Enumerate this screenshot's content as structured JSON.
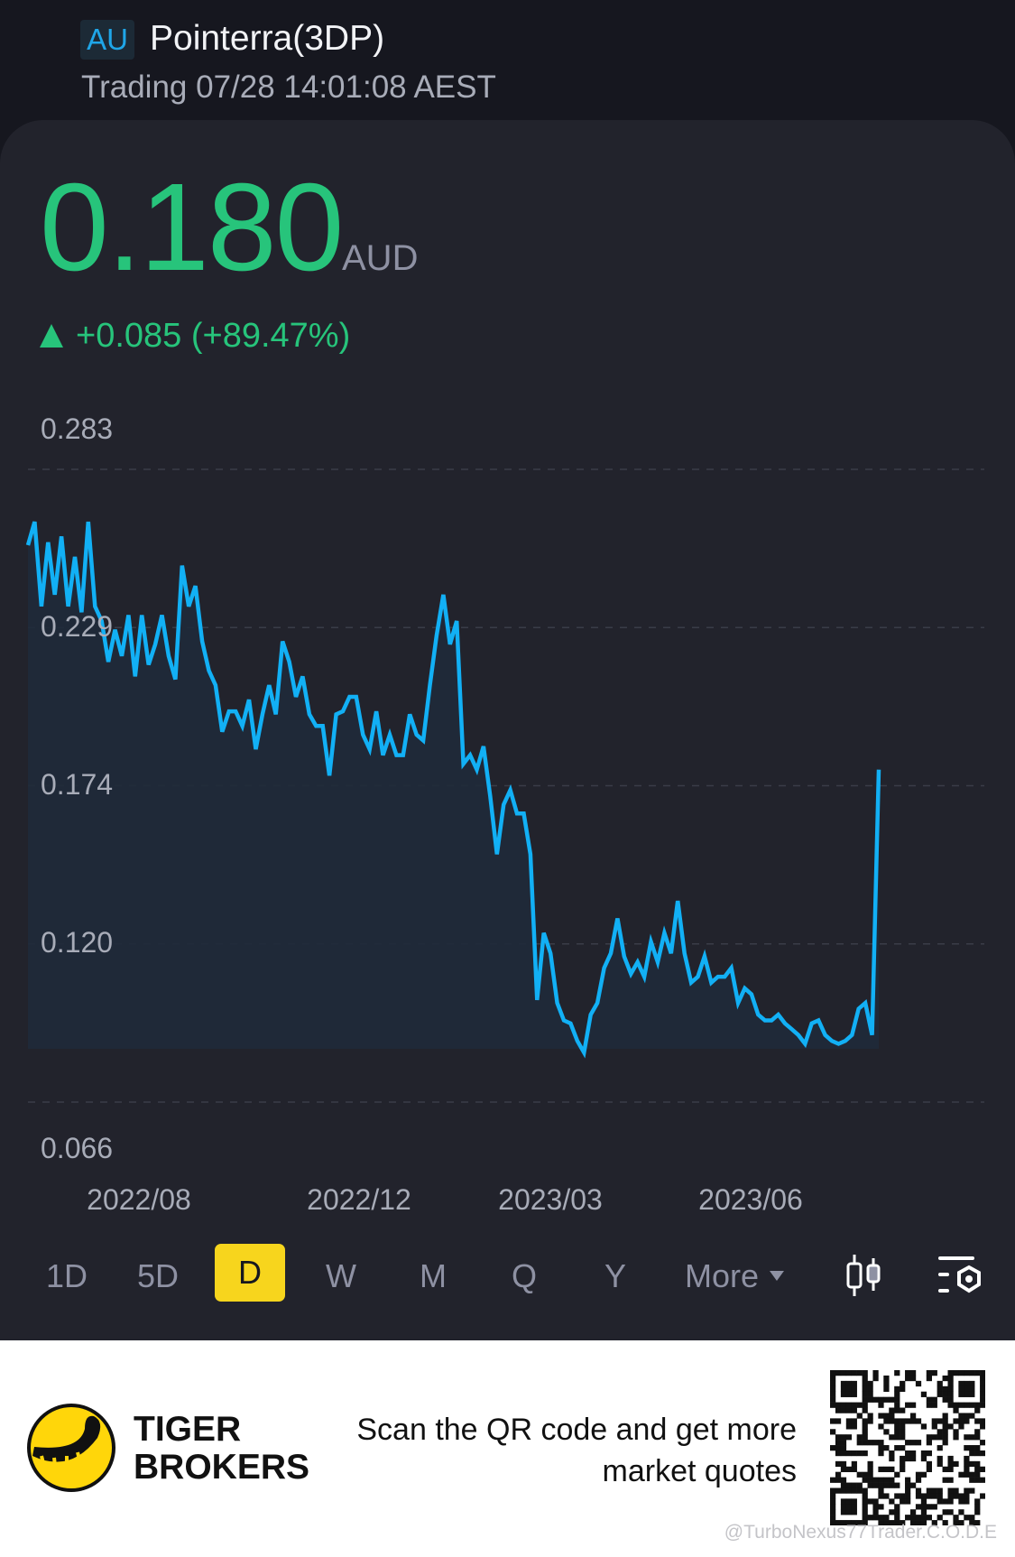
{
  "header": {
    "market_badge": "AU",
    "title": "Pointerra(3DP)",
    "status": "Trading 07/28 14:01:08 AEST"
  },
  "quote": {
    "price": "0.180",
    "currency": "AUD",
    "change": "+0.085 (+89.47%)",
    "direction_icon": "triangle-up-icon",
    "up_color": "#27c47b"
  },
  "chart_data": {
    "type": "area",
    "title": "",
    "xlabel": "",
    "ylabel": "",
    "ylim": [
      0.066,
      0.283
    ],
    "y_ticks": [
      "0.283",
      "0.229",
      "0.174",
      "0.120",
      "0.066"
    ],
    "x_ticks": [
      "2022/08",
      "2022/12",
      "2023/03",
      "2023/06"
    ],
    "grid": true,
    "line_color": "#12b0f5",
    "values": [
      0.257,
      0.265,
      0.236,
      0.258,
      0.24,
      0.26,
      0.236,
      0.253,
      0.234,
      0.265,
      0.236,
      0.231,
      0.217,
      0.228,
      0.219,
      0.233,
      0.212,
      0.233,
      0.216,
      0.223,
      0.233,
      0.219,
      0.211,
      0.25,
      0.236,
      0.243,
      0.224,
      0.214,
      0.209,
      0.193,
      0.2,
      0.2,
      0.195,
      0.204,
      0.187,
      0.199,
      0.209,
      0.199,
      0.224,
      0.217,
      0.205,
      0.212,
      0.199,
      0.195,
      0.195,
      0.178,
      0.199,
      0.2,
      0.205,
      0.205,
      0.192,
      0.187,
      0.2,
      0.185,
      0.192,
      0.185,
      0.185,
      0.199,
      0.192,
      0.19,
      0.209,
      0.226,
      0.24,
      0.223,
      0.231,
      0.182,
      0.185,
      0.18,
      0.188,
      0.171,
      0.151,
      0.168,
      0.173,
      0.165,
      0.165,
      0.151,
      0.101,
      0.124,
      0.117,
      0.1,
      0.094,
      0.093,
      0.087,
      0.083,
      0.096,
      0.1,
      0.112,
      0.117,
      0.129,
      0.116,
      0.11,
      0.114,
      0.109,
      0.121,
      0.114,
      0.124,
      0.117,
      0.135,
      0.117,
      0.107,
      0.109,
      0.116,
      0.107,
      0.109,
      0.109,
      0.112,
      0.1,
      0.105,
      0.103,
      0.096,
      0.094,
      0.094,
      0.096,
      0.093,
      0.091,
      0.089,
      0.086,
      0.093,
      0.094,
      0.089,
      0.087,
      0.086,
      0.087,
      0.089,
      0.098,
      0.1,
      0.089,
      0.18
    ]
  },
  "timeframes": {
    "items": [
      "1D",
      "5D",
      "D",
      "W",
      "M",
      "Q",
      "Y",
      "More"
    ],
    "selected": "D",
    "accent": "#f7d51d",
    "more_icon": "caret-down-icon",
    "chart_type_icon": "candlestick-icon",
    "settings_icon": "chart-settings-icon"
  },
  "footer": {
    "brand_line1": "TIGER",
    "brand_line2": "BROKERS",
    "scan_line1": "Scan the QR code and get more",
    "scan_line2": "market quotes",
    "watermark": "@TurboNexus77Trader.C.O.D.E",
    "logo_color": "#ffd60a"
  }
}
